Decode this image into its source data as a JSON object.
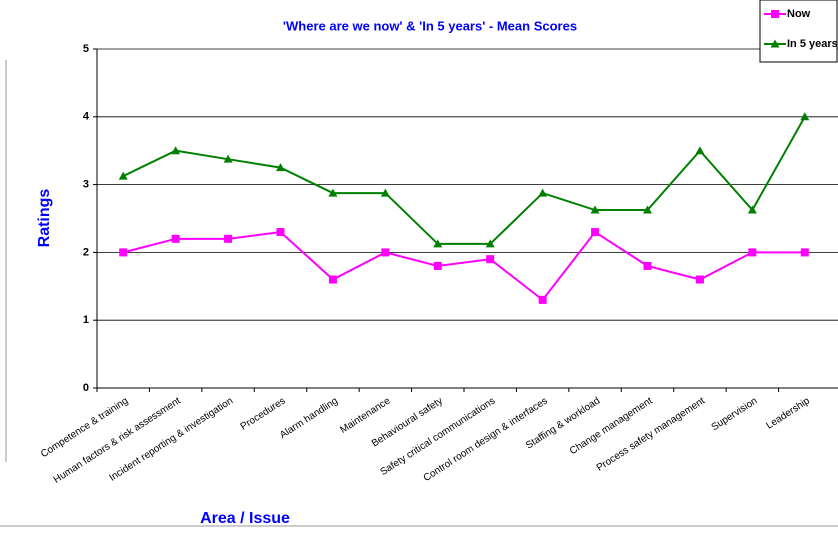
{
  "chart_data": {
    "type": "line",
    "title": "'Where are we now' & 'In 5 years' - Mean Scores",
    "y_label": "Ratings",
    "x_label": "Area / Issue",
    "categories": [
      "Competence & training",
      "Human factors & risk assessment",
      "Incident reporting & investigation",
      "Procedures",
      "Alarm handling",
      "Maintenance",
      "Behavioural safety",
      "Safety critical communications",
      "Control room design & interfaces",
      "Staffing & workload",
      "Change management",
      "Process safety management",
      "Supervision",
      "Leadership"
    ],
    "series": [
      {
        "name": "Now",
        "color": "#ff00ff",
        "marker": "square",
        "values": [
          2.0,
          2.2,
          2.2,
          2.3,
          1.6,
          2.0,
          1.8,
          1.9,
          1.3,
          2.3,
          1.8,
          1.6,
          2.0,
          2.0
        ]
      },
      {
        "name": "In 5 years",
        "color": "#008000",
        "marker": "triangle",
        "values": [
          3.125,
          3.5,
          3.375,
          3.25,
          2.875,
          2.875,
          2.125,
          2.125,
          2.875,
          2.625,
          2.625,
          3.5,
          2.625,
          4.0
        ]
      }
    ],
    "ylim": [
      0,
      5
    ],
    "yticks": [
      0,
      1,
      2,
      3,
      4,
      5
    ],
    "grid": true,
    "legend": "top-right"
  }
}
